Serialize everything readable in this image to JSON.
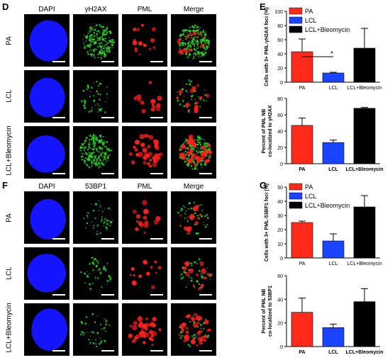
{
  "panel_letters": [
    "D",
    "E",
    "F",
    "G"
  ],
  "panel_D": {
    "columns": [
      "DAPI",
      "γH2AX",
      "PML",
      "Merge"
    ],
    "rows": [
      "PA",
      "LCL",
      "LCL+Bleomycin"
    ]
  },
  "panel_F": {
    "columns": [
      "DAPI",
      "53BP1",
      "PML",
      "Merge"
    ],
    "rows": [
      "PA",
      "LCL",
      "LCL+Bleomycin"
    ]
  },
  "colors": {
    "PA": "#ff2a1a",
    "LCL": "#1a44ff",
    "LCL+Bleomycin": "#000000",
    "dapi": "#1414ff",
    "green": "#2fd12f",
    "red": "#ff1f1f"
  },
  "chart_data": [
    {
      "id": "E-top",
      "type": "bar",
      "categories": [
        "PA",
        "LCL",
        "LCL+Bleomycin"
      ],
      "values": [
        43,
        13,
        48
      ],
      "errors": [
        18,
        1,
        28
      ],
      "ylabel": "Cells with 3+ PML-γH2AX foci (%)",
      "ylim": [
        0,
        100
      ],
      "yticks": [
        0,
        20,
        40,
        60,
        80,
        100
      ],
      "legend": [
        "PA",
        "LCL",
        "LCL+Bleomycin"
      ],
      "significance": "*"
    },
    {
      "id": "E-bottom",
      "type": "bar",
      "categories": [
        "PA",
        "LCL",
        "LCL+Bleomycin"
      ],
      "values": [
        47,
        26,
        68
      ],
      "errors": [
        9,
        3,
        1
      ],
      "ylabel": "Percent of PML NB co-localized to γH2AX",
      "ylim": [
        0,
        80
      ],
      "yticks": [
        0,
        20,
        40,
        60,
        80
      ]
    },
    {
      "id": "G-top",
      "type": "bar",
      "categories": [
        "PA",
        "LCL",
        "LCL+Bleomycin"
      ],
      "values": [
        25,
        12,
        36
      ],
      "errors": [
        1,
        5,
        8
      ],
      "ylabel": "Cells with 3+ PML-53BP1 foci (%)",
      "ylim": [
        0,
        50
      ],
      "yticks": [
        0,
        10,
        20,
        30,
        40,
        50
      ],
      "legend": [
        "PA",
        "LCL",
        "LCL+Bleomycin"
      ]
    },
    {
      "id": "G-bottom",
      "type": "bar",
      "categories": [
        "PA",
        "LCL",
        "LCL+Bleomycin"
      ],
      "values": [
        29,
        16,
        38
      ],
      "errors": [
        12,
        3,
        11
      ],
      "ylabel": "Percent of PML NB co-localized to 53BP1",
      "ylim": [
        0,
        60
      ],
      "yticks": [
        0,
        20,
        40,
        60
      ]
    }
  ]
}
